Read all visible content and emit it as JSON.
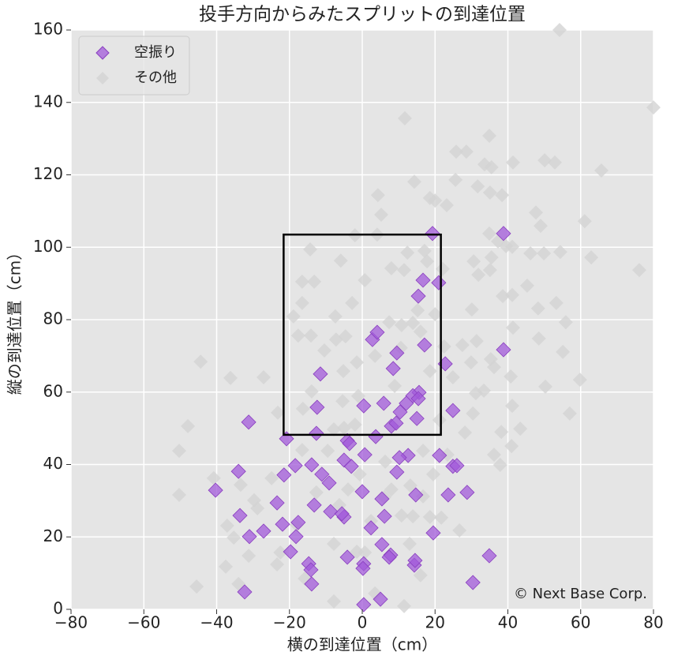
{
  "chart_data": {
    "type": "scatter",
    "title": "投手方向からみたスプリットの到達位置",
    "x_label": "横の到達位置（cm）",
    "y_label": "縦の到達位置（cm）",
    "annotation": "© Next Base Corp.",
    "xlim": [
      -80,
      80
    ],
    "ylim": [
      0,
      160
    ],
    "xticks": [
      {
        "value": -80,
        "label": "−80"
      },
      {
        "value": -60,
        "label": "−60"
      },
      {
        "value": -40,
        "label": "−40"
      },
      {
        "value": -20,
        "label": "−20"
      },
      0,
      20,
      40,
      60,
      80
    ],
    "yticks": [
      0,
      20,
      40,
      60,
      80,
      100,
      120,
      140,
      160
    ],
    "grid": true,
    "legend": "upper left",
    "zone": {
      "x": [
        -21.6,
        21.6
      ],
      "y": [
        48.2,
        103.5
      ]
    },
    "series": [
      {
        "name": "空振り",
        "color": "#a25ad9",
        "x": [
          38.8,
          19.3,
          16.7,
          21,
          15.4,
          17.1,
          38.8,
          2.8,
          4.1,
          9.5,
          8.5,
          22.8,
          -11.5,
          15.6,
          13.9,
          15.4,
          5.9,
          0.4,
          -12.4,
          24.9,
          10.4,
          12.1,
          15,
          8,
          9.3,
          -31.2,
          -20.8,
          -12.6,
          3.7,
          -4.1,
          -3.5,
          21.2,
          12.6,
          10.2,
          0.7,
          -5,
          -18.4,
          -13.9,
          -34,
          24.9,
          26,
          -3,
          9.5,
          -11.1,
          -21.5,
          -9.1,
          14.7,
          23.6,
          28.8,
          0,
          5.4,
          -40.3,
          -13.2,
          -23.4,
          -33.6,
          -27.1,
          -21.9,
          -17.6,
          -8.7,
          -5,
          -5.6,
          6.1,
          2.4,
          19.5,
          -31,
          -18.2,
          -19.7,
          5.4,
          7.8,
          7.4,
          14.3,
          14.5,
          -4.1,
          0.4,
          0.2,
          -14.7,
          -14.1,
          34.9,
          30.4,
          -13.9,
          -32.3,
          0.4,
          5
        ],
        "values": [
          103.8,
          103.8,
          90.9,
          90.2,
          86.5,
          73,
          71.7,
          74.5,
          76.5,
          70.8,
          66.5,
          67.8,
          65,
          59.9,
          59,
          58.2,
          56.9,
          56.2,
          55.8,
          54.9,
          54.5,
          56.9,
          52.7,
          50.6,
          51.4,
          51.7,
          47.1,
          48.6,
          47.7,
          46.6,
          45.8,
          42.5,
          42.5,
          41.9,
          42.7,
          41.2,
          39.7,
          39.9,
          38.1,
          39.5,
          39.7,
          39.5,
          37.9,
          37.3,
          37.1,
          34.9,
          31.6,
          31.6,
          32.3,
          32.5,
          30.5,
          32.9,
          28.8,
          29.4,
          25.9,
          21.6,
          23.5,
          24,
          27,
          25.5,
          26.4,
          25.7,
          22.5,
          21.1,
          20.1,
          20.1,
          15.9,
          17.9,
          15,
          14.4,
          12.2,
          13.5,
          14.4,
          12.6,
          11.3,
          12.6,
          10.9,
          14.8,
          7.4,
          7,
          4.8,
          1.3,
          2.8
        ]
      },
      {
        "name": "その他",
        "color": "#d3d3d3",
        "x": [
          54.2,
          80,
          11.7,
          34.9,
          25.8,
          28.6,
          41.4,
          50.1,
          52.9,
          65.7,
          33.6,
          35.5,
          14.3,
          31.7,
          25.6,
          4.3,
          35.1,
          38.4,
          18.6,
          23.2,
          20,
          47.7,
          5.2,
          61.1,
          49,
          34.9,
          -2,
          4.1,
          37.3,
          39.5,
          46.2,
          54.4,
          62.9,
          49.9,
          41.2,
          17.1,
          12.4,
          -14.3,
          -5.9,
          17.8,
          35.5,
          30.6,
          8,
          22.1,
          11.5,
          31.9,
          35.1,
          0.7,
          -16.5,
          -13.2,
          76.1,
          45.3,
          38.6,
          53.3,
          41.2,
          48.3,
          15.2,
          -16.5,
          -2.8,
          20,
          30.1,
          -18.9,
          -7.4,
          7.4,
          55.9,
          41.4,
          13.9,
          10.8,
          -17.6,
          -14.1,
          -7.2,
          -4.6,
          16,
          31.4,
          48.5,
          27.5,
          10.6,
          -10.4,
          22.5,
          55.1,
          35.3,
          -44.4,
          -1.5,
          29.9,
          3.5,
          18.6,
          36.2,
          -36.2,
          -27.1,
          -5.2,
          59.8,
          24.9,
          40.8,
          8.9,
          50.3,
          -13.9,
          31.2,
          33.4,
          -1.1,
          -5.4,
          41.2,
          -16.3,
          -23.2,
          30.4,
          57,
          21.2,
          -5,
          -2,
          -47.9,
          43.4,
          38.2,
          28.2,
          -7.8,
          -50.3,
          41,
          36.2,
          -16.5,
          -9.5,
          16.7,
          37.9,
          23.4,
          6.3,
          -40.8,
          -33.4,
          -24.9,
          -0.7,
          19.5,
          13.2,
          8,
          -3.9,
          -50.3,
          -29.7,
          -28.8,
          16.7,
          -12.6,
          6.1,
          -6.3,
          10.8,
          13.9,
          18.6,
          -37.1,
          -18,
          -35.3,
          21.7,
          26.7,
          2.4,
          -22.5,
          13,
          -1.5,
          -7.8,
          -37.5,
          -31.2,
          -23.4,
          -15.8,
          0.7,
          16,
          -45.5,
          -34,
          -7.8,
          3.5,
          11.5
        ],
        "values": [
          160,
          138.6,
          135.6,
          130.8,
          126.4,
          126.4,
          123.4,
          124,
          123.4,
          121.2,
          122.9,
          122.1,
          118.1,
          116.8,
          118.6,
          114.4,
          115.1,
          114.4,
          113.6,
          111.6,
          112.9,
          109.6,
          109,
          107.2,
          105.9,
          103.8,
          103.3,
          103.5,
          101.6,
          100.3,
          98.3,
          98.7,
          97.2,
          98.3,
          100.1,
          99,
          98.5,
          99.4,
          96.3,
          96.1,
          97.2,
          96.1,
          94.2,
          94,
          93.7,
          92.4,
          93.7,
          90.9,
          90.5,
          90.5,
          93.7,
          89.4,
          86.5,
          84.6,
          86.8,
          83.1,
          82.6,
          84.6,
          84.6,
          81.5,
          82.8,
          80.9,
          80.9,
          79.3,
          79.3,
          77.8,
          79.1,
          78.5,
          75.6,
          75.6,
          74.5,
          75.4,
          76.7,
          74.1,
          74.8,
          73,
          72.2,
          71.5,
          72.6,
          71.1,
          69.1,
          68.4,
          68.2,
          68.2,
          70,
          65.8,
          66.9,
          63.9,
          64.1,
          65.8,
          63.4,
          64.1,
          64.3,
          61.7,
          61.5,
          60.2,
          59.7,
          60.4,
          58.9,
          57.5,
          56.2,
          55.4,
          54.3,
          54.1,
          54.1,
          52.3,
          50.1,
          51,
          50.6,
          49.9,
          49,
          48.8,
          49.7,
          43.8,
          45.1,
          42.7,
          44,
          43.8,
          43.8,
          39.9,
          42.7,
          40.8,
          36.2,
          34.4,
          36.2,
          37.3,
          37.3,
          34.2,
          33.1,
          33.1,
          31.6,
          30.1,
          27.9,
          31.2,
          32.3,
          31,
          28.8,
          25.9,
          25.7,
          25.5,
          23.1,
          23.3,
          19.8,
          25.3,
          21.8,
          24.4,
          15.7,
          18.1,
          15.9,
          18.1,
          11.8,
          14.8,
          12.4,
          8.5,
          15.7,
          9.4,
          6.3,
          7,
          2.2,
          4.4,
          0.9
        ]
      }
    ]
  }
}
